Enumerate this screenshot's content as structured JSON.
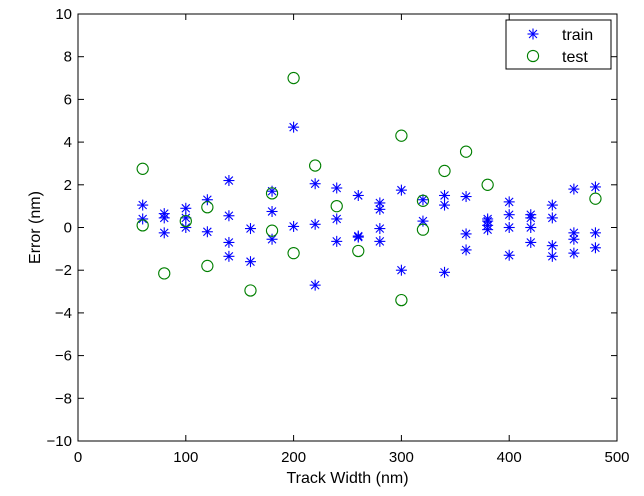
{
  "chart_data": {
    "type": "scatter",
    "title": "",
    "xlabel": "Track Width (nm)",
    "ylabel": "Error (nm)",
    "xlim": [
      0,
      500
    ],
    "ylim": [
      -10,
      10
    ],
    "xticks": [
      0,
      100,
      200,
      300,
      400,
      500
    ],
    "yticks": [
      -10,
      -8,
      -6,
      -4,
      -2,
      0,
      2,
      4,
      6,
      8,
      10
    ],
    "grid": false,
    "legend_position": "top-right",
    "series": [
      {
        "name": "train",
        "marker": "asterisk",
        "color": "#0000ff",
        "points": [
          [
            60,
            1.05
          ],
          [
            60,
            0.4
          ],
          [
            80,
            0.65
          ],
          [
            80,
            0.45
          ],
          [
            80,
            -0.25
          ],
          [
            100,
            0.9
          ],
          [
            100,
            0.45
          ],
          [
            100,
            0.0
          ],
          [
            120,
            1.3
          ],
          [
            120,
            -0.2
          ],
          [
            140,
            2.2
          ],
          [
            140,
            0.55
          ],
          [
            140,
            -0.7
          ],
          [
            140,
            -1.35
          ],
          [
            160,
            -0.05
          ],
          [
            160,
            -1.6
          ],
          [
            180,
            1.7
          ],
          [
            180,
            0.75
          ],
          [
            180,
            -0.55
          ],
          [
            200,
            4.7
          ],
          [
            200,
            0.05
          ],
          [
            220,
            2.05
          ],
          [
            220,
            0.15
          ],
          [
            220,
            -2.7
          ],
          [
            240,
            1.85
          ],
          [
            240,
            0.4
          ],
          [
            240,
            -0.65
          ],
          [
            260,
            1.5
          ],
          [
            260,
            -0.4
          ],
          [
            260,
            -0.45
          ],
          [
            280,
            1.15
          ],
          [
            280,
            0.85
          ],
          [
            280,
            -0.05
          ],
          [
            280,
            -0.65
          ],
          [
            300,
            1.75
          ],
          [
            300,
            -2.0
          ],
          [
            320,
            1.3
          ],
          [
            320,
            0.3
          ],
          [
            340,
            1.5
          ],
          [
            340,
            1.05
          ],
          [
            340,
            -2.1
          ],
          [
            360,
            1.45
          ],
          [
            360,
            -0.3
          ],
          [
            360,
            -1.05
          ],
          [
            380,
            0.4
          ],
          [
            380,
            0.3
          ],
          [
            380,
            0.1
          ],
          [
            380,
            -0.1
          ],
          [
            400,
            1.2
          ],
          [
            400,
            0.6
          ],
          [
            400,
            0.0
          ],
          [
            400,
            -1.3
          ],
          [
            420,
            0.6
          ],
          [
            420,
            0.45
          ],
          [
            420,
            0.0
          ],
          [
            420,
            -0.7
          ],
          [
            440,
            1.05
          ],
          [
            440,
            0.45
          ],
          [
            440,
            -0.85
          ],
          [
            440,
            -1.35
          ],
          [
            460,
            1.8
          ],
          [
            460,
            -0.25
          ],
          [
            460,
            -0.55
          ],
          [
            460,
            -1.2
          ],
          [
            480,
            1.9
          ],
          [
            480,
            -0.25
          ],
          [
            480,
            -0.95
          ]
        ]
      },
      {
        "name": "test",
        "marker": "circle",
        "color": "#007f00",
        "points": [
          [
            60,
            2.75
          ],
          [
            60,
            0.1
          ],
          [
            80,
            -2.15
          ],
          [
            100,
            0.3
          ],
          [
            120,
            0.95
          ],
          [
            120,
            -1.8
          ],
          [
            160,
            -2.95
          ],
          [
            180,
            1.6
          ],
          [
            180,
            -0.15
          ],
          [
            200,
            7.0
          ],
          [
            200,
            -1.2
          ],
          [
            220,
            2.9
          ],
          [
            240,
            1.0
          ],
          [
            260,
            -1.1
          ],
          [
            300,
            4.3
          ],
          [
            300,
            -3.4
          ],
          [
            320,
            1.25
          ],
          [
            320,
            -0.1
          ],
          [
            340,
            2.65
          ],
          [
            360,
            3.55
          ],
          [
            380,
            2.0
          ],
          [
            480,
            1.35
          ]
        ]
      }
    ]
  }
}
